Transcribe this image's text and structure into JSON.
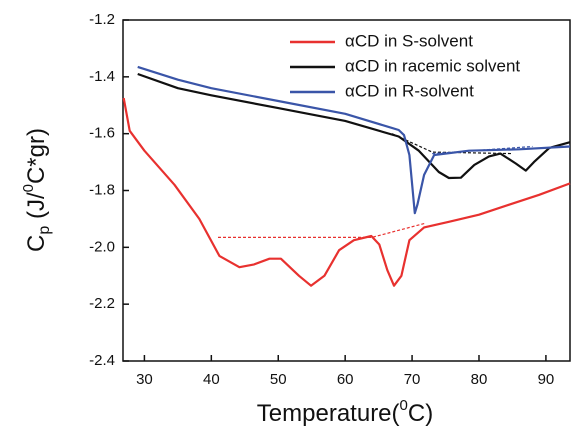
{
  "chart_data": {
    "type": "line",
    "xlabel": [
      "Temperature(",
      "0",
      "C)"
    ],
    "ylabel": [
      "C",
      "p",
      " (J/",
      "0",
      "C*gr)"
    ],
    "xlim": [
      26.8,
      93.6
    ],
    "ylim": [
      -2.4,
      -1.2
    ],
    "xticks": [
      30,
      40,
      50,
      60,
      70,
      80,
      90
    ],
    "yticks": [
      -2.4,
      -2.2,
      {
        "value": -2.0,
        "label": "-2.0"
      },
      -1.8,
      -1.6,
      -1.4,
      -1.2
    ],
    "legend": "upper right",
    "series": [
      {
        "name": "αCD in S-solvent",
        "color": "#e8312f",
        "x": [
          26.9,
          27.8,
          30,
          34.5,
          38.2,
          41.2,
          44.2,
          46.4,
          48.7,
          50.4,
          53.1,
          54.9,
          56.9,
          59.1,
          61.3,
          63.9,
          65.1,
          66.3,
          67.3,
          68.4,
          69.6,
          71.8,
          75.5,
          80,
          84.5,
          89,
          93.6
        ],
        "values": [
          -1.475,
          -1.59,
          -1.66,
          -1.78,
          -1.9,
          -2.03,
          -2.07,
          -2.06,
          -2.04,
          -2.04,
          -2.1,
          -2.135,
          -2.1,
          -2.01,
          -1.975,
          -1.96,
          -1.99,
          -2.08,
          -2.135,
          -2.1,
          -1.975,
          -1.93,
          -1.91,
          -1.885,
          -1.85,
          -1.815,
          -1.775
        ]
      },
      {
        "name": "αCD in racemic solvent",
        "color": "#111111",
        "x": [
          29,
          35,
          40,
          50,
          60,
          68,
          71,
          74,
          75.5,
          77.3,
          79.3,
          81.5,
          83.2,
          85.5,
          87,
          88.2,
          90.5,
          93.6
        ],
        "values": [
          -1.39,
          -1.44,
          -1.465,
          -1.51,
          -1.555,
          -1.61,
          -1.66,
          -1.735,
          -1.756,
          -1.755,
          -1.71,
          -1.68,
          -1.67,
          -1.705,
          -1.73,
          -1.7,
          -1.65,
          -1.63
        ]
      },
      {
        "name": "αCD in R-solvent",
        "color": "#3a55a8",
        "x": [
          29,
          35,
          40,
          50,
          60,
          68,
          68.8,
          69.6,
          70.4,
          70.8,
          71.8,
          73.3,
          78.5,
          86,
          93.6
        ],
        "values": [
          -1.365,
          -1.41,
          -1.44,
          -1.485,
          -1.53,
          -1.587,
          -1.605,
          -1.675,
          -1.88,
          -1.85,
          -1.745,
          -1.675,
          -1.66,
          -1.655,
          -1.645
        ]
      }
    ],
    "dashed_lines": [
      {
        "color": "#e8312f",
        "x": [
          41,
          64,
          72
        ],
        "values": [
          -1.965,
          -1.965,
          -1.915
        ]
      },
      {
        "color": "#111111",
        "x": [
          67,
          73,
          85
        ],
        "values": [
          -1.6,
          -1.665,
          -1.67
        ]
      },
      {
        "color": "#3a55a8",
        "x": [
          73,
          88
        ],
        "values": [
          -1.67,
          -1.645
        ]
      }
    ]
  }
}
